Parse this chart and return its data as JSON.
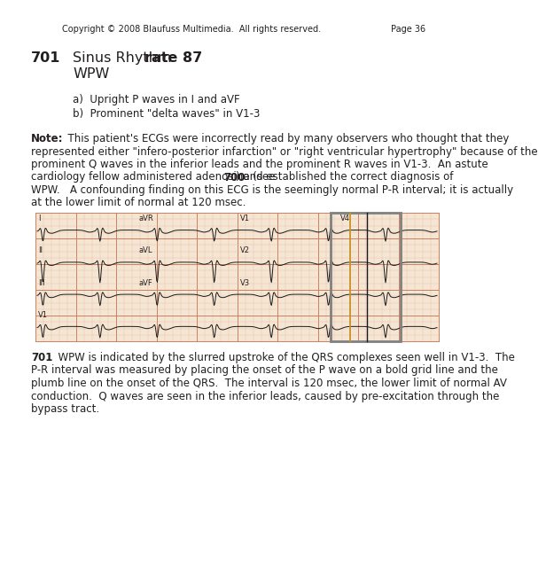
{
  "copyright": "Copyright © 2008 Blaufuss Multimedia.  All rights reserved.",
  "page": "Page 36",
  "case_number": "701",
  "title_normal": "Sinus Rhythm ",
  "title_bold": "rate 87",
  "subtitle": "WPW",
  "bullet_a": "a)  Upright P waves in I and aVF",
  "bullet_b": "b)  Prominent \"delta waves\" in V1-3",
  "note_line1": "Note:  This patient's ECGs were incorrectly read by many observers who thought that they",
  "note_line2": "represented either \"infero-posterior infarction\" or \"right ventricular hypertrophy\" because of the",
  "note_line3": "prominent Q waves in the inferior leads and the prominent R waves in V1-3.  An astute",
  "note_line4_pre": "cardiology fellow administered adenosine (see ",
  "note_line4_bold": "700",
  "note_line4_post": ") and established the correct diagnosis of",
  "note_line5": "WPW.   A confounding finding on this ECG is the seemingly normal P-R interval; it is actually",
  "note_line6": "at the lower limit of normal at 120 msec.",
  "footer_line1_bold": "701",
  "footer_line1_rest": ":  WPW is indicated by the slurred upstroke of the QRS complexes seen well in V1-3.  The",
  "footer_line2": "P-R interval was measured by placing the onset of the P wave on a bold grid line and the",
  "footer_line3": "plumb line on the onset of the QRS.  The interval is 120 msec, the lower limit of normal AV",
  "footer_line4": "conduction.  Q waves are seen in the inferior leads, caused by pre-excitation through the",
  "footer_line5": "bypass tract.",
  "bg_color": "#ffffff",
  "text_color": "#231f20",
  "ecg_bg": "#f5e6d3",
  "ecg_grid_light": "#e8b4a0",
  "ecg_grid_dark": "#cc8060",
  "ecg_line_color": "#1a1a1a",
  "highlight_box_color": "#808080",
  "highlight_line_color": "#c8922a",
  "highlight_line2_color": "#1a1a1a",
  "font_size_header": 7.0,
  "font_size_body": 8.5,
  "font_size_case": 11.5,
  "font_size_lead": 6.0,
  "lead_labels_row0": [
    "I",
    "aVR",
    "V1",
    "V4"
  ],
  "lead_labels_row1": [
    "II",
    "aVL",
    "V2",
    ""
  ],
  "lead_labels_row2": [
    "III",
    "aVF",
    "V3",
    ""
  ],
  "lead_labels_row3": [
    "V1",
    "",
    "",
    ""
  ]
}
